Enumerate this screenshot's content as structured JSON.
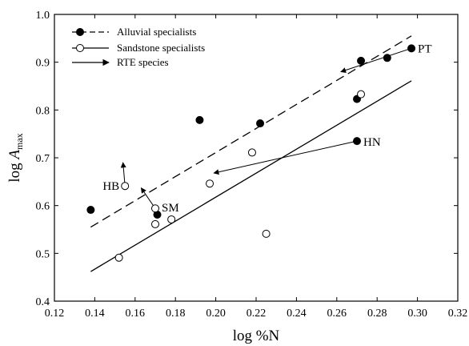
{
  "chart_data": {
    "type": "scatter",
    "xlabel": "log %N",
    "ylabel_base": "log ",
    "ylabel_var": "A",
    "ylabel_sub": "max",
    "xlim": [
      0.12,
      0.32
    ],
    "ylim": [
      0.4,
      1.0
    ],
    "xticks": [
      0.12,
      0.14,
      0.16,
      0.18,
      0.2,
      0.22,
      0.24,
      0.26,
      0.28,
      0.3,
      0.32
    ],
    "xtick_labels": [
      "0.12",
      "0.14",
      "0.16",
      "0.18",
      "0.20",
      "0.22",
      "0.24",
      "0.26",
      "0.28",
      "0.30",
      "0.32"
    ],
    "yticks": [
      0.4,
      0.5,
      0.6,
      0.7,
      0.8,
      0.9,
      1.0
    ],
    "ytick_labels": [
      "0.4",
      "0.5",
      "0.6",
      "0.7",
      "0.8",
      "0.9",
      "1.0"
    ],
    "legend": {
      "placement": "top-left",
      "entries": [
        {
          "label": "Alluvial specialists",
          "marker": "filled-circle",
          "line": "dashed"
        },
        {
          "label": "Sandstone specialists",
          "marker": "open-circle",
          "line": "solid"
        },
        {
          "label": "RTE species",
          "marker": "none",
          "line": "arrow"
        }
      ]
    },
    "series": [
      {
        "name": "Alluvial specialists",
        "marker": "filled",
        "points": [
          {
            "x": 0.138,
            "y": 0.591
          },
          {
            "x": 0.171,
            "y": 0.581
          },
          {
            "x": 0.192,
            "y": 0.779
          },
          {
            "x": 0.222,
            "y": 0.772
          },
          {
            "x": 0.27,
            "y": 0.735,
            "label": "HN"
          },
          {
            "x": 0.27,
            "y": 0.823
          },
          {
            "x": 0.272,
            "y": 0.903
          },
          {
            "x": 0.285,
            "y": 0.909
          },
          {
            "x": 0.297,
            "y": 0.929,
            "label": "PT"
          }
        ],
        "fit": {
          "style": "dashed",
          "x": [
            0.138,
            0.297
          ],
          "y": [
            0.555,
            0.955
          ]
        }
      },
      {
        "name": "Sandstone specialists",
        "marker": "open",
        "points": [
          {
            "x": 0.152,
            "y": 0.491
          },
          {
            "x": 0.155,
            "y": 0.641,
            "label": "HB"
          },
          {
            "x": 0.17,
            "y": 0.594,
            "label": "SM"
          },
          {
            "x": 0.17,
            "y": 0.561
          },
          {
            "x": 0.178,
            "y": 0.571
          },
          {
            "x": 0.197,
            "y": 0.646
          },
          {
            "x": 0.218,
            "y": 0.711
          },
          {
            "x": 0.225,
            "y": 0.541
          },
          {
            "x": 0.272,
            "y": 0.833
          }
        ],
        "fit": {
          "style": "solid",
          "x": [
            0.138,
            0.297
          ],
          "y": [
            0.462,
            0.861
          ]
        }
      }
    ],
    "arrows": [
      {
        "from": [
          0.155,
          0.641
        ],
        "to": [
          0.154,
          0.69
        ]
      },
      {
        "from": [
          0.17,
          0.594
        ],
        "to": [
          0.163,
          0.637
        ]
      },
      {
        "from": [
          0.27,
          0.735
        ],
        "to": [
          0.199,
          0.668
        ]
      },
      {
        "from": [
          0.297,
          0.929
        ],
        "to": [
          0.262,
          0.88
        ]
      }
    ]
  }
}
